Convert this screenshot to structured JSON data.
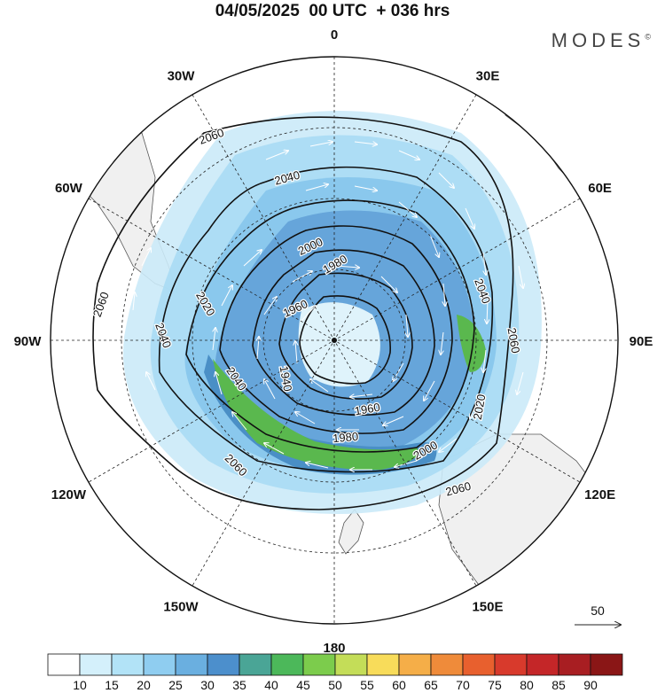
{
  "header": {
    "title": "04/05/2025  00 UTC  + 036 hrs",
    "brand": "MODES",
    "brand_mark": "©"
  },
  "map": {
    "projection": "south-polar-stereographic",
    "longitude_labels": [
      {
        "text": "0",
        "lon": 0
      },
      {
        "text": "30E",
        "lon": 30
      },
      {
        "text": "60E",
        "lon": 60
      },
      {
        "text": "90E",
        "lon": 90
      },
      {
        "text": "120E",
        "lon": 120
      },
      {
        "text": "150E",
        "lon": 150
      },
      {
        "text": "180",
        "lon": 180
      },
      {
        "text": "150W",
        "lon": -150
      },
      {
        "text": "120W",
        "lon": -120
      },
      {
        "text": "90W",
        "lon": -90
      },
      {
        "text": "60W",
        "lon": -60
      },
      {
        "text": "30W",
        "lon": -30
      }
    ],
    "contour_labels": [
      "2060",
      "2040",
      "2020",
      "2000",
      "1980",
      "1960",
      "1940",
      "2040",
      "2060",
      "2060",
      "2040",
      "2020",
      "2000",
      "1980",
      "1960",
      "2060",
      "2040",
      "2060"
    ],
    "wind_reference": "50",
    "colorbar": {
      "labels": [
        "10",
        "15",
        "20",
        "25",
        "30",
        "35",
        "40",
        "45",
        "50",
        "55",
        "60",
        "65",
        "70",
        "75",
        "80",
        "85",
        "90"
      ],
      "colors": [
        "#ffffff",
        "#d4f0fb",
        "#b2e3f7",
        "#8fcdf0",
        "#6aafe0",
        "#4c8fcc",
        "#4aa596",
        "#4cb85a",
        "#7ccc4c",
        "#c4dd58",
        "#f8dc5a",
        "#f5ae48",
        "#ef8b3a",
        "#e8602e",
        "#d83a2c",
        "#c42628",
        "#a81e22",
        "#8a1616"
      ]
    }
  }
}
